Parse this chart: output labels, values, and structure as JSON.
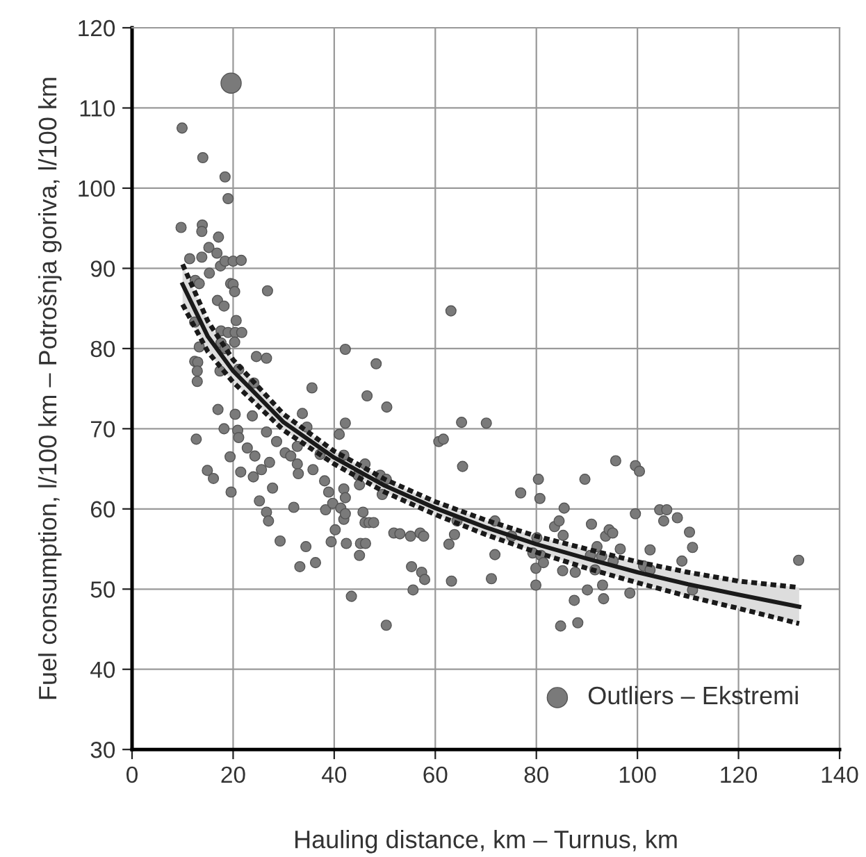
{
  "chart_data": {
    "type": "scatter",
    "xlabel": "Hauling distance, km – Turnus, km",
    "ylabel": "Fuel consumption, l/100 km – Potrošnja goriva, l/100 km",
    "xlim": [
      0,
      140
    ],
    "xticks": [
      0,
      20,
      40,
      60,
      80,
      100,
      120,
      140
    ],
    "ylim": [
      30,
      120
    ],
    "yticks": [
      30,
      40,
      50,
      60,
      70,
      80,
      90,
      100,
      110,
      120
    ],
    "grid": true,
    "legend": "bottom right",
    "marker": "circle",
    "series": [
      {
        "color": "#7a7a7a",
        "x": [
          9.9,
          14.0,
          18.4,
          19.0,
          9.7,
          13.9,
          13.8,
          15.2,
          17.1,
          11.4,
          13.8,
          16.8,
          17.5,
          18.4,
          15.3,
          20.0,
          21.6,
          19.5,
          20.0,
          20.3,
          26.8,
          12.5,
          13.3,
          16.9,
          18.2,
          12.4,
          17.6,
          19.0,
          20.4,
          21.7,
          20.6,
          20.3,
          17.6,
          18.4,
          13.3,
          12.4,
          13.0,
          12.9,
          12.9,
          17.4,
          21.1,
          24.6,
          26.6,
          24.1,
          17.0,
          20.4,
          23.8,
          12.7,
          18.2,
          20.9,
          21.1,
          26.6,
          19.4,
          19.6,
          21.5,
          22.8,
          24.3,
          24.0,
          25.6,
          27.2,
          14.9,
          16.1,
          25.2,
          26.6,
          27.0,
          27.8,
          28.6,
          29.3,
          30.3,
          31.4,
          32.0,
          32.7,
          32.7,
          32.9,
          33.2,
          33.7,
          34.4,
          34.6,
          35.6,
          35.8,
          36.3,
          37.2,
          38.1,
          38.3,
          38.9,
          39.4,
          39.7,
          40.2,
          41.0,
          41.3,
          41.9,
          42.2,
          42.2,
          41.9,
          42.2,
          41.9,
          42.2,
          42.4,
          43.4,
          44.7,
          45.0,
          45.0,
          45.2,
          45.7,
          46.1,
          46.1,
          46.5,
          46.2,
          46.9,
          47.8,
          48.3,
          49.1,
          49.5,
          50.3,
          50.4,
          50.3,
          51.8,
          53.0,
          55.1,
          55.3,
          55.6,
          57.0,
          57.3,
          57.7,
          57.9,
          60.7,
          61.6,
          62.7,
          63.2,
          63.1,
          63.8,
          64.3,
          65.2,
          65.4,
          70.1,
          71.1,
          71.8,
          71.8,
          75.1,
          76.9,
          79.3,
          79.9,
          79.9,
          80.1,
          80.4,
          80.7,
          80.9,
          81.4,
          83.6,
          84.5,
          84.8,
          85.2,
          85.5,
          85.3,
          87.5,
          87.7,
          88.2,
          89.6,
          90.1,
          90.7,
          90.9,
          92.0,
          91.6,
          92.9,
          93.1,
          93.3,
          93.7,
          94.4,
          95.1,
          95.2,
          95.7,
          96.6,
          98.5,
          99.6,
          99.6,
          100.4,
          101.2,
          102.5,
          102.5,
          104.4,
          105.2,
          105.8,
          107.9,
          108.8,
          110.3,
          110.9,
          110.9,
          131.9
        ],
        "values": [
          107.5,
          103.8,
          101.4,
          98.7,
          95.1,
          95.4,
          94.6,
          92.6,
          93.9,
          91.2,
          91.4,
          91.9,
          90.3,
          90.9,
          89.4,
          90.9,
          91.0,
          88.1,
          88.0,
          87.1,
          87.2,
          88.5,
          88.1,
          86.0,
          85.3,
          83.3,
          82.2,
          82.0,
          82.0,
          82.0,
          83.5,
          80.8,
          80.7,
          80.0,
          80.2,
          78.4,
          78.3,
          77.2,
          75.9,
          77.2,
          77.4,
          79.0,
          78.8,
          75.7,
          72.4,
          71.8,
          71.6,
          68.7,
          70.0,
          69.8,
          68.9,
          69.6,
          66.5,
          62.1,
          64.6,
          67.6,
          66.6,
          64.0,
          64.9,
          65.8,
          64.8,
          63.8,
          61.0,
          59.6,
          58.5,
          62.6,
          68.4,
          56.0,
          67.0,
          66.6,
          60.2,
          67.8,
          65.6,
          64.4,
          52.8,
          71.9,
          55.3,
          70.2,
          75.1,
          64.9,
          53.3,
          66.8,
          63.5,
          59.9,
          62.1,
          55.9,
          60.7,
          57.4,
          69.3,
          60.1,
          66.7,
          70.7,
          79.9,
          62.5,
          61.4,
          58.7,
          59.4,
          55.7,
          49.1,
          64.2,
          63.0,
          54.2,
          55.7,
          59.6,
          65.6,
          58.3,
          74.1,
          55.7,
          58.3,
          58.3,
          78.1,
          64.2,
          61.8,
          63.7,
          72.7,
          45.5,
          57.0,
          56.9,
          56.6,
          52.8,
          49.9,
          57.0,
          52.1,
          56.6,
          51.2,
          68.4,
          68.7,
          55.6,
          51.0,
          84.7,
          56.8,
          58.5,
          70.8,
          65.3,
          70.7,
          51.3,
          54.3,
          58.5,
          56.6,
          62.0,
          54.5,
          52.6,
          50.5,
          56.4,
          63.7,
          61.3,
          54.2,
          53.3,
          57.8,
          58.5,
          45.4,
          52.3,
          60.1,
          56.7,
          48.6,
          52.1,
          45.8,
          63.7,
          49.9,
          54.2,
          58.1,
          55.3,
          52.4,
          54.1,
          50.5,
          48.8,
          56.6,
          57.4,
          57.0,
          53.5,
          66.0,
          55.0,
          49.5,
          59.4,
          65.4,
          64.7,
          52.9,
          54.9,
          52.4,
          59.9,
          58.5,
          59.9,
          58.9,
          53.5,
          57.1,
          55.2,
          49.9,
          53.6
        ]
      },
      {
        "name": "Outliers – Ekstremi",
        "color": "#7a7a7a",
        "x": [
          19.6
        ],
        "values": [
          113.1
        ]
      },
      {
        "type": "line",
        "color": "#1a1a1a",
        "marker": "none",
        "line_style": "dotted",
        "x": [
          10,
          15,
          20,
          30,
          40,
          50,
          60,
          70,
          80,
          90,
          100,
          110,
          120,
          132
        ],
        "values": [
          85.5,
          79.6,
          75.8,
          69.8,
          65.6,
          62.1,
          59.3,
          56.8,
          54.6,
          52.6,
          50.8,
          49.1,
          47.6,
          45.7
        ]
      },
      {
        "type": "line",
        "color": "#1a1a1a",
        "marker": "none",
        "line_style": "dotted",
        "x": [
          10,
          15,
          20,
          30,
          40,
          50,
          60,
          70,
          80,
          90,
          100,
          110,
          120,
          132
        ],
        "values": [
          90.5,
          83.4,
          78.6,
          71.8,
          67.2,
          63.7,
          60.9,
          58.6,
          56.6,
          55.0,
          53.4,
          52.1,
          51.0,
          50.2
        ]
      },
      {
        "type": "line",
        "color": "#1a1a1a",
        "marker": "none",
        "line_style": "solid",
        "x": [
          10,
          15,
          20,
          30,
          40,
          50,
          60,
          70,
          80,
          90,
          100,
          110,
          120,
          132
        ],
        "values": [
          88,
          81.5,
          77.2,
          70.8,
          66.4,
          62.9,
          60.1,
          57.7,
          55.6,
          53.8,
          52.1,
          50.6,
          49.3,
          47.8
        ],
        "lower": [
          85.5,
          79.6,
          75.8,
          69.8,
          65.6,
          62.1,
          59.3,
          56.8,
          54.6,
          52.6,
          50.8,
          49.1,
          47.6,
          45.7
        ],
        "upper": [
          90.5,
          83.4,
          78.6,
          71.8,
          67.2,
          63.7,
          60.9,
          58.6,
          56.6,
          55.0,
          53.4,
          52.1,
          51.0,
          50.2
        ]
      }
    ]
  }
}
